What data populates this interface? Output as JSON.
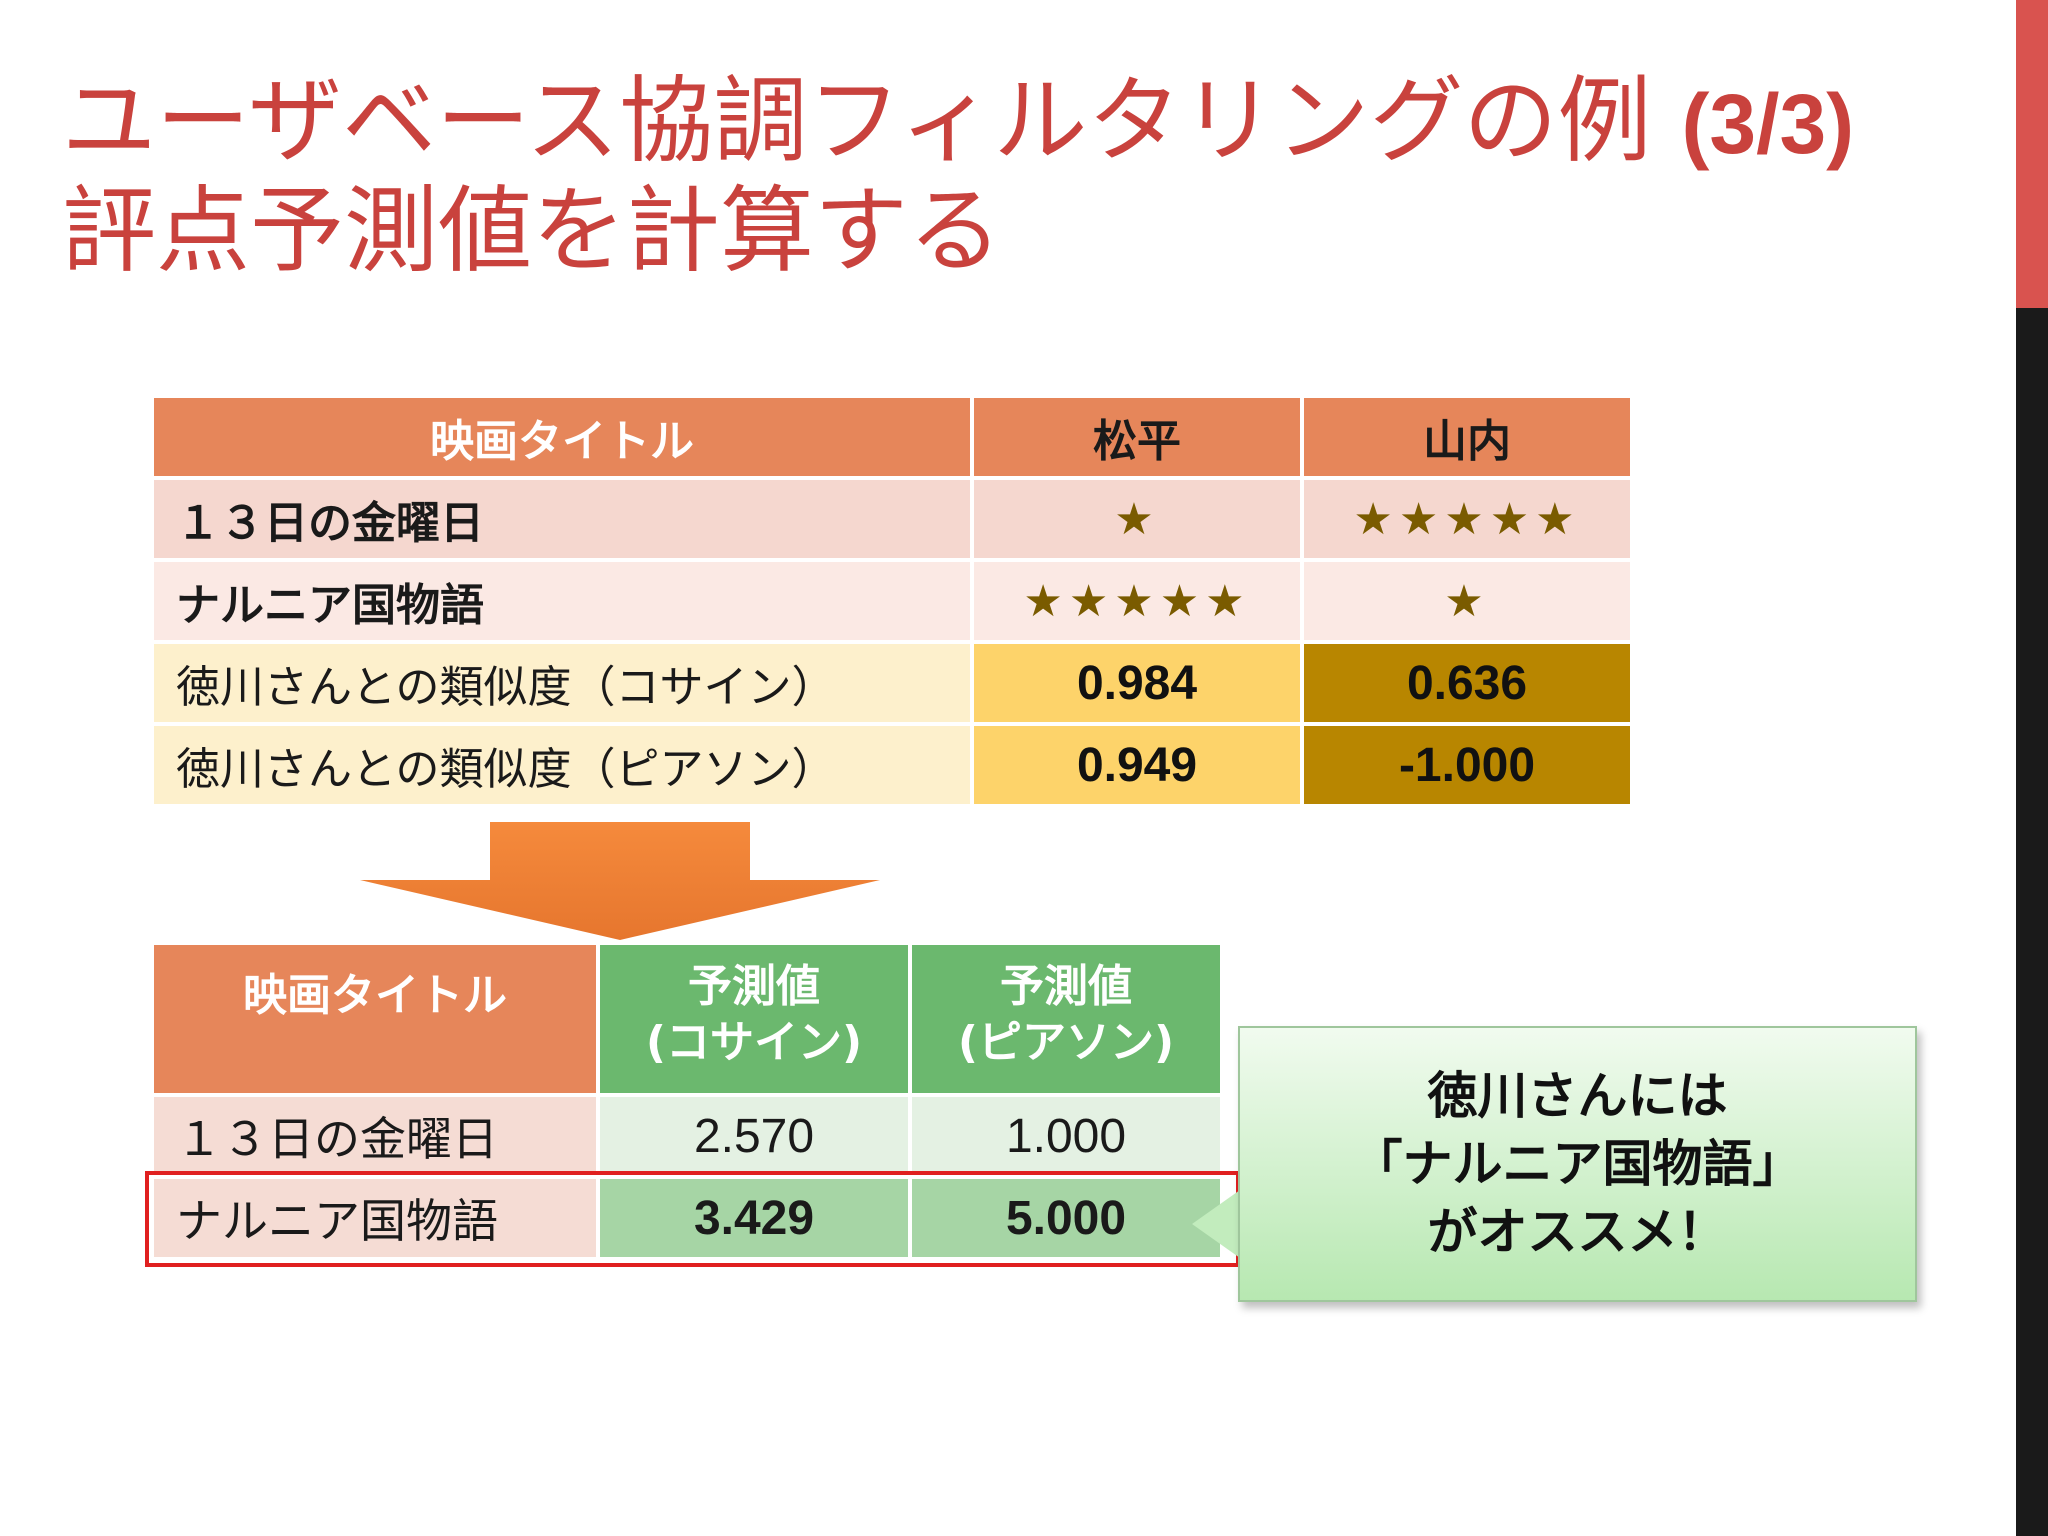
{
  "title": {
    "line1_text": "ユーザベース協調フィルタリングの例",
    "line1_num": "(3/3)",
    "line2": "評点予測値を計算する"
  },
  "table1": {
    "headers": [
      "映画タイトル",
      "松平",
      "山内"
    ],
    "rows": [
      {
        "label": "１３日の金曜日",
        "c1": "★",
        "c2": "★★★★★"
      },
      {
        "label": "ナルニア国物語",
        "c1": "★★★★★",
        "c2": "★"
      },
      {
        "label": "徳川さんとの類似度（コサイン）",
        "c1": "0.984",
        "c2": "0.636"
      },
      {
        "label": "徳川さんとの類似度（ピアソン）",
        "c1": "0.949",
        "c2": "-1.000"
      }
    ]
  },
  "table2": {
    "headers": {
      "title": "映画タイトル",
      "cos_l1": "予測値",
      "cos_l2": "(コサイン)",
      "pea_l1": "予測値",
      "pea_l2": "(ピアソン)"
    },
    "rows": [
      {
        "label": "１３日の金曜日",
        "cos": "2.570",
        "pea": "1.000"
      },
      {
        "label": "ナルニア国物語",
        "cos": "3.429",
        "pea": "5.000"
      }
    ]
  },
  "callout": {
    "line1": "徳川さんには",
    "line2": "「ナルニア国物語」",
    "line3": "がオススメ！"
  },
  "colors": {
    "title": "#c9423d",
    "header_orange": "#e6865a",
    "header_green": "#6bb86e",
    "highlight": "#e02020"
  }
}
